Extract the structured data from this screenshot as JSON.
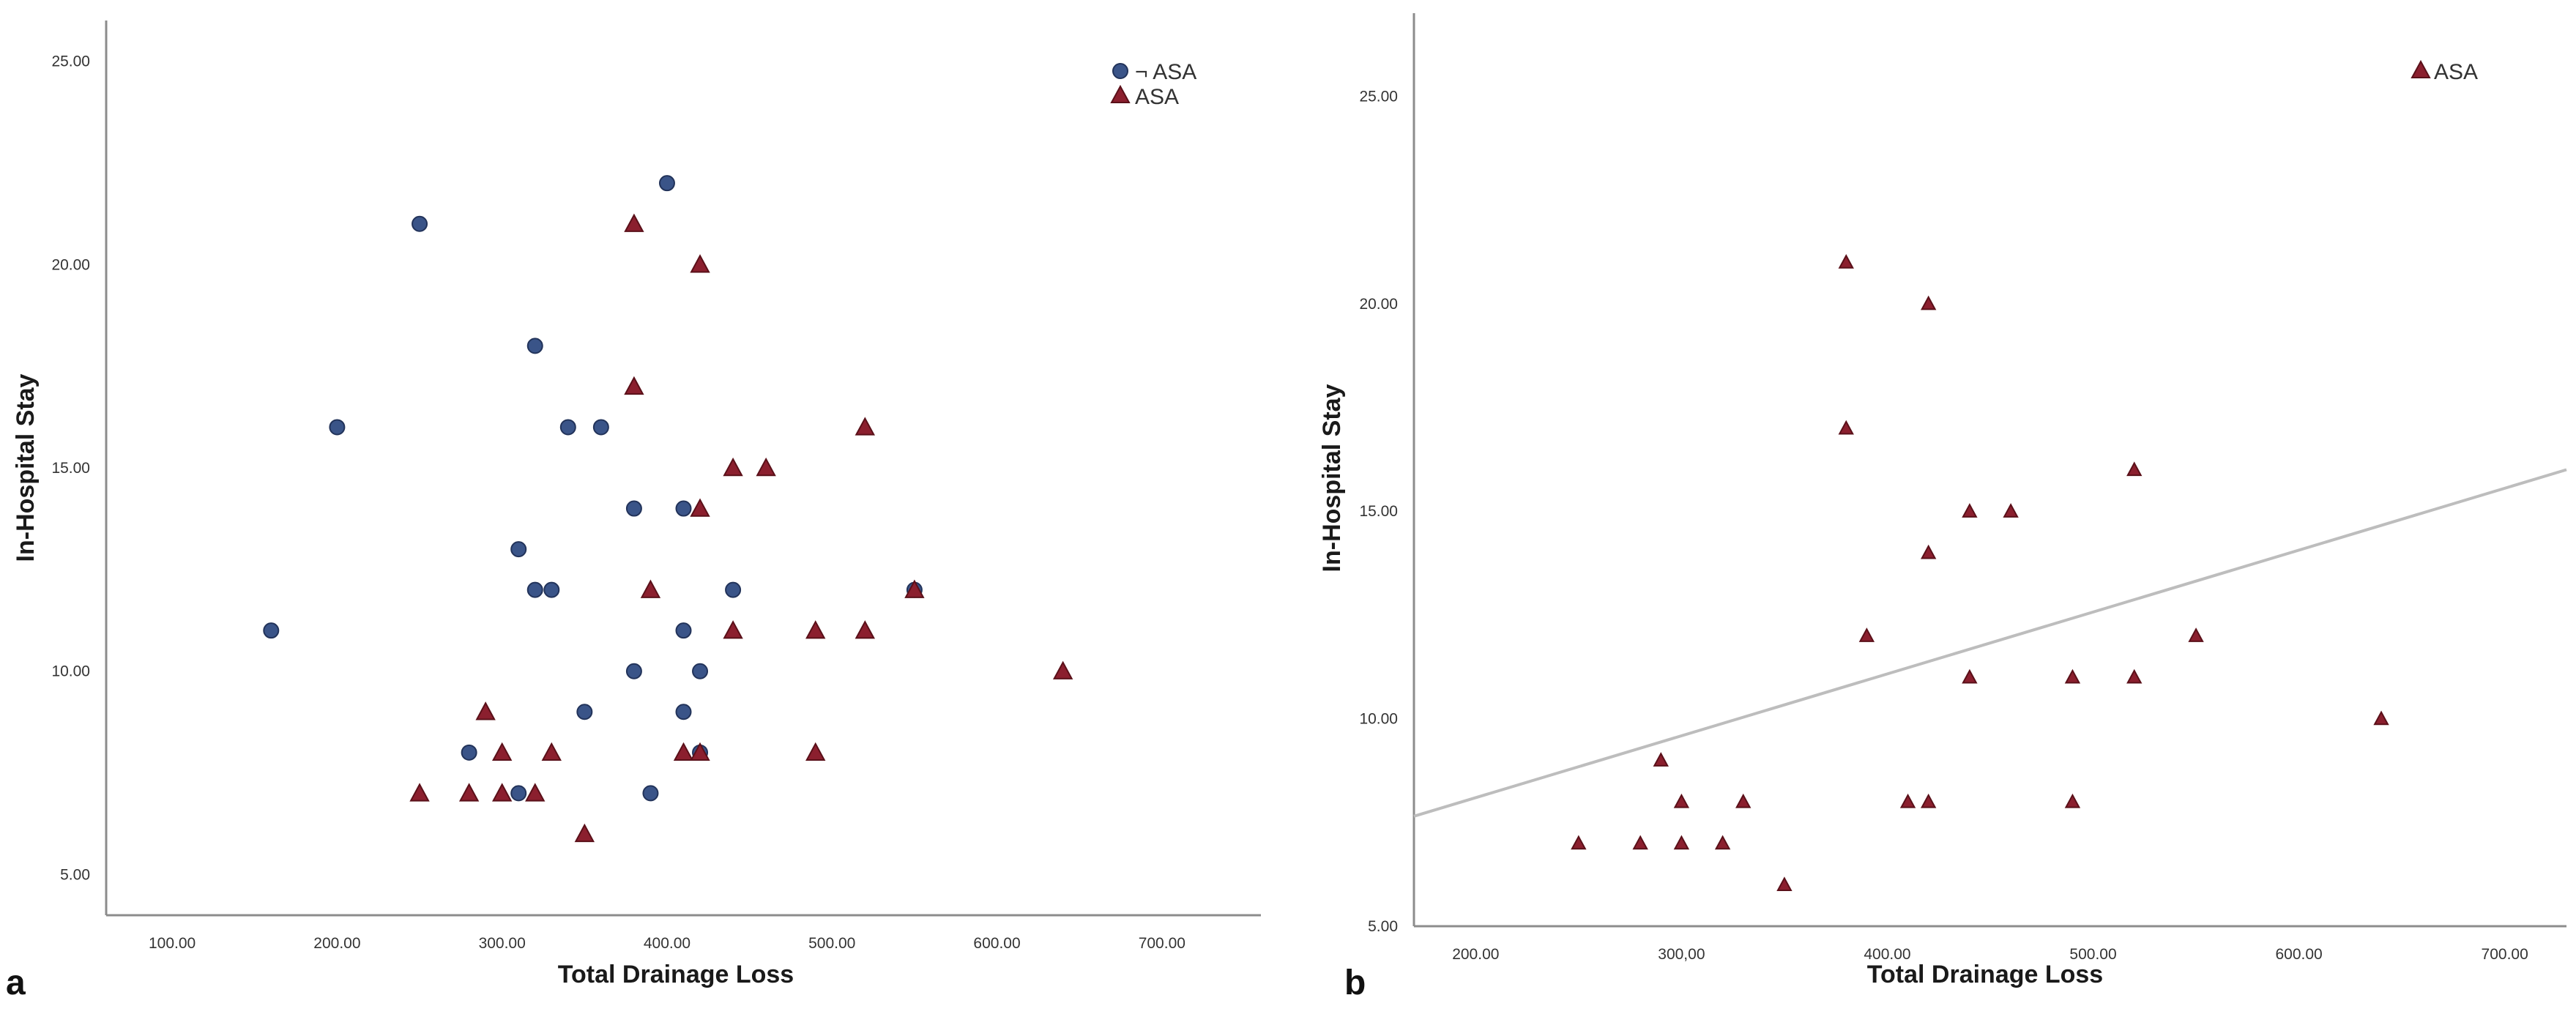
{
  "colors": {
    "no_asa": "#3a5488",
    "asa": "#8b1f2e",
    "axis": "#8c8c8c",
    "fit": "#bdbdbd"
  },
  "panels": {
    "a": "a",
    "b": "b"
  },
  "chart_data": [
    {
      "panel": "a",
      "type": "scatter",
      "title": "",
      "xlabel": "Total Drainage Loss",
      "ylabel": "In-Hospital Stay",
      "xlim": [
        60,
        760
      ],
      "ylim": [
        4,
        26
      ],
      "xticks": [
        "100.00",
        "200.00",
        "300.00",
        "400.00",
        "500.00",
        "600.00",
        "700.00"
      ],
      "yticks": [
        "5.00",
        "10.00",
        "15.00",
        "20.00",
        "25.00"
      ],
      "legend_position": "top-right",
      "series": [
        {
          "name": "¬ ASA",
          "marker": "circle",
          "x": [
            160,
            200,
            250,
            280,
            310,
            310,
            320,
            320,
            330,
            340,
            350,
            360,
            380,
            380,
            390,
            400,
            410,
            410,
            410,
            420,
            420,
            440,
            550
          ],
          "y": [
            11,
            16,
            21,
            8,
            7,
            13,
            12,
            18,
            12,
            16,
            9,
            16,
            14,
            10,
            7,
            22,
            14,
            11,
            9,
            10,
            8,
            12,
            12
          ]
        },
        {
          "name": "ASA",
          "marker": "triangle",
          "x": [
            250,
            280,
            290,
            300,
            300,
            320,
            330,
            350,
            380,
            380,
            390,
            410,
            420,
            420,
            420,
            440,
            440,
            460,
            490,
            490,
            520,
            520,
            550,
            640
          ],
          "y": [
            7,
            7,
            9,
            8,
            7,
            7,
            8,
            6,
            21,
            17,
            12,
            8,
            8,
            20,
            14,
            15,
            11,
            15,
            11,
            8,
            16,
            11,
            12,
            10
          ]
        }
      ]
    },
    {
      "panel": "b",
      "type": "scatter",
      "title": "",
      "xlabel": "Total Drainage Loss",
      "ylabel": "In-Hospital Stay",
      "xlim": [
        170,
        730
      ],
      "ylim": [
        5,
        27
      ],
      "xticks": [
        "200.00",
        "300,00",
        "400.00",
        "500.00",
        "600.00",
        "700.00"
      ],
      "yticks": [
        "5.00",
        "10.00",
        "15.00",
        "20.00",
        "25.00"
      ],
      "legend_position": "top-right",
      "series": [
        {
          "name": "ASA",
          "marker": "triangle",
          "x": [
            250,
            280,
            290,
            300,
            300,
            320,
            330,
            350,
            380,
            380,
            390,
            410,
            420,
            420,
            420,
            440,
            440,
            460,
            490,
            490,
            520,
            520,
            550,
            640
          ],
          "y": [
            7,
            7,
            9,
            8,
            7,
            7,
            8,
            6,
            21,
            17,
            12,
            8,
            8,
            20,
            14,
            15,
            11,
            15,
            11,
            8,
            16,
            11,
            12,
            10
          ]
        }
      ],
      "fit_line": {
        "x": [
          170,
          730
        ],
        "y": [
          7.65,
          16
        ]
      }
    }
  ]
}
